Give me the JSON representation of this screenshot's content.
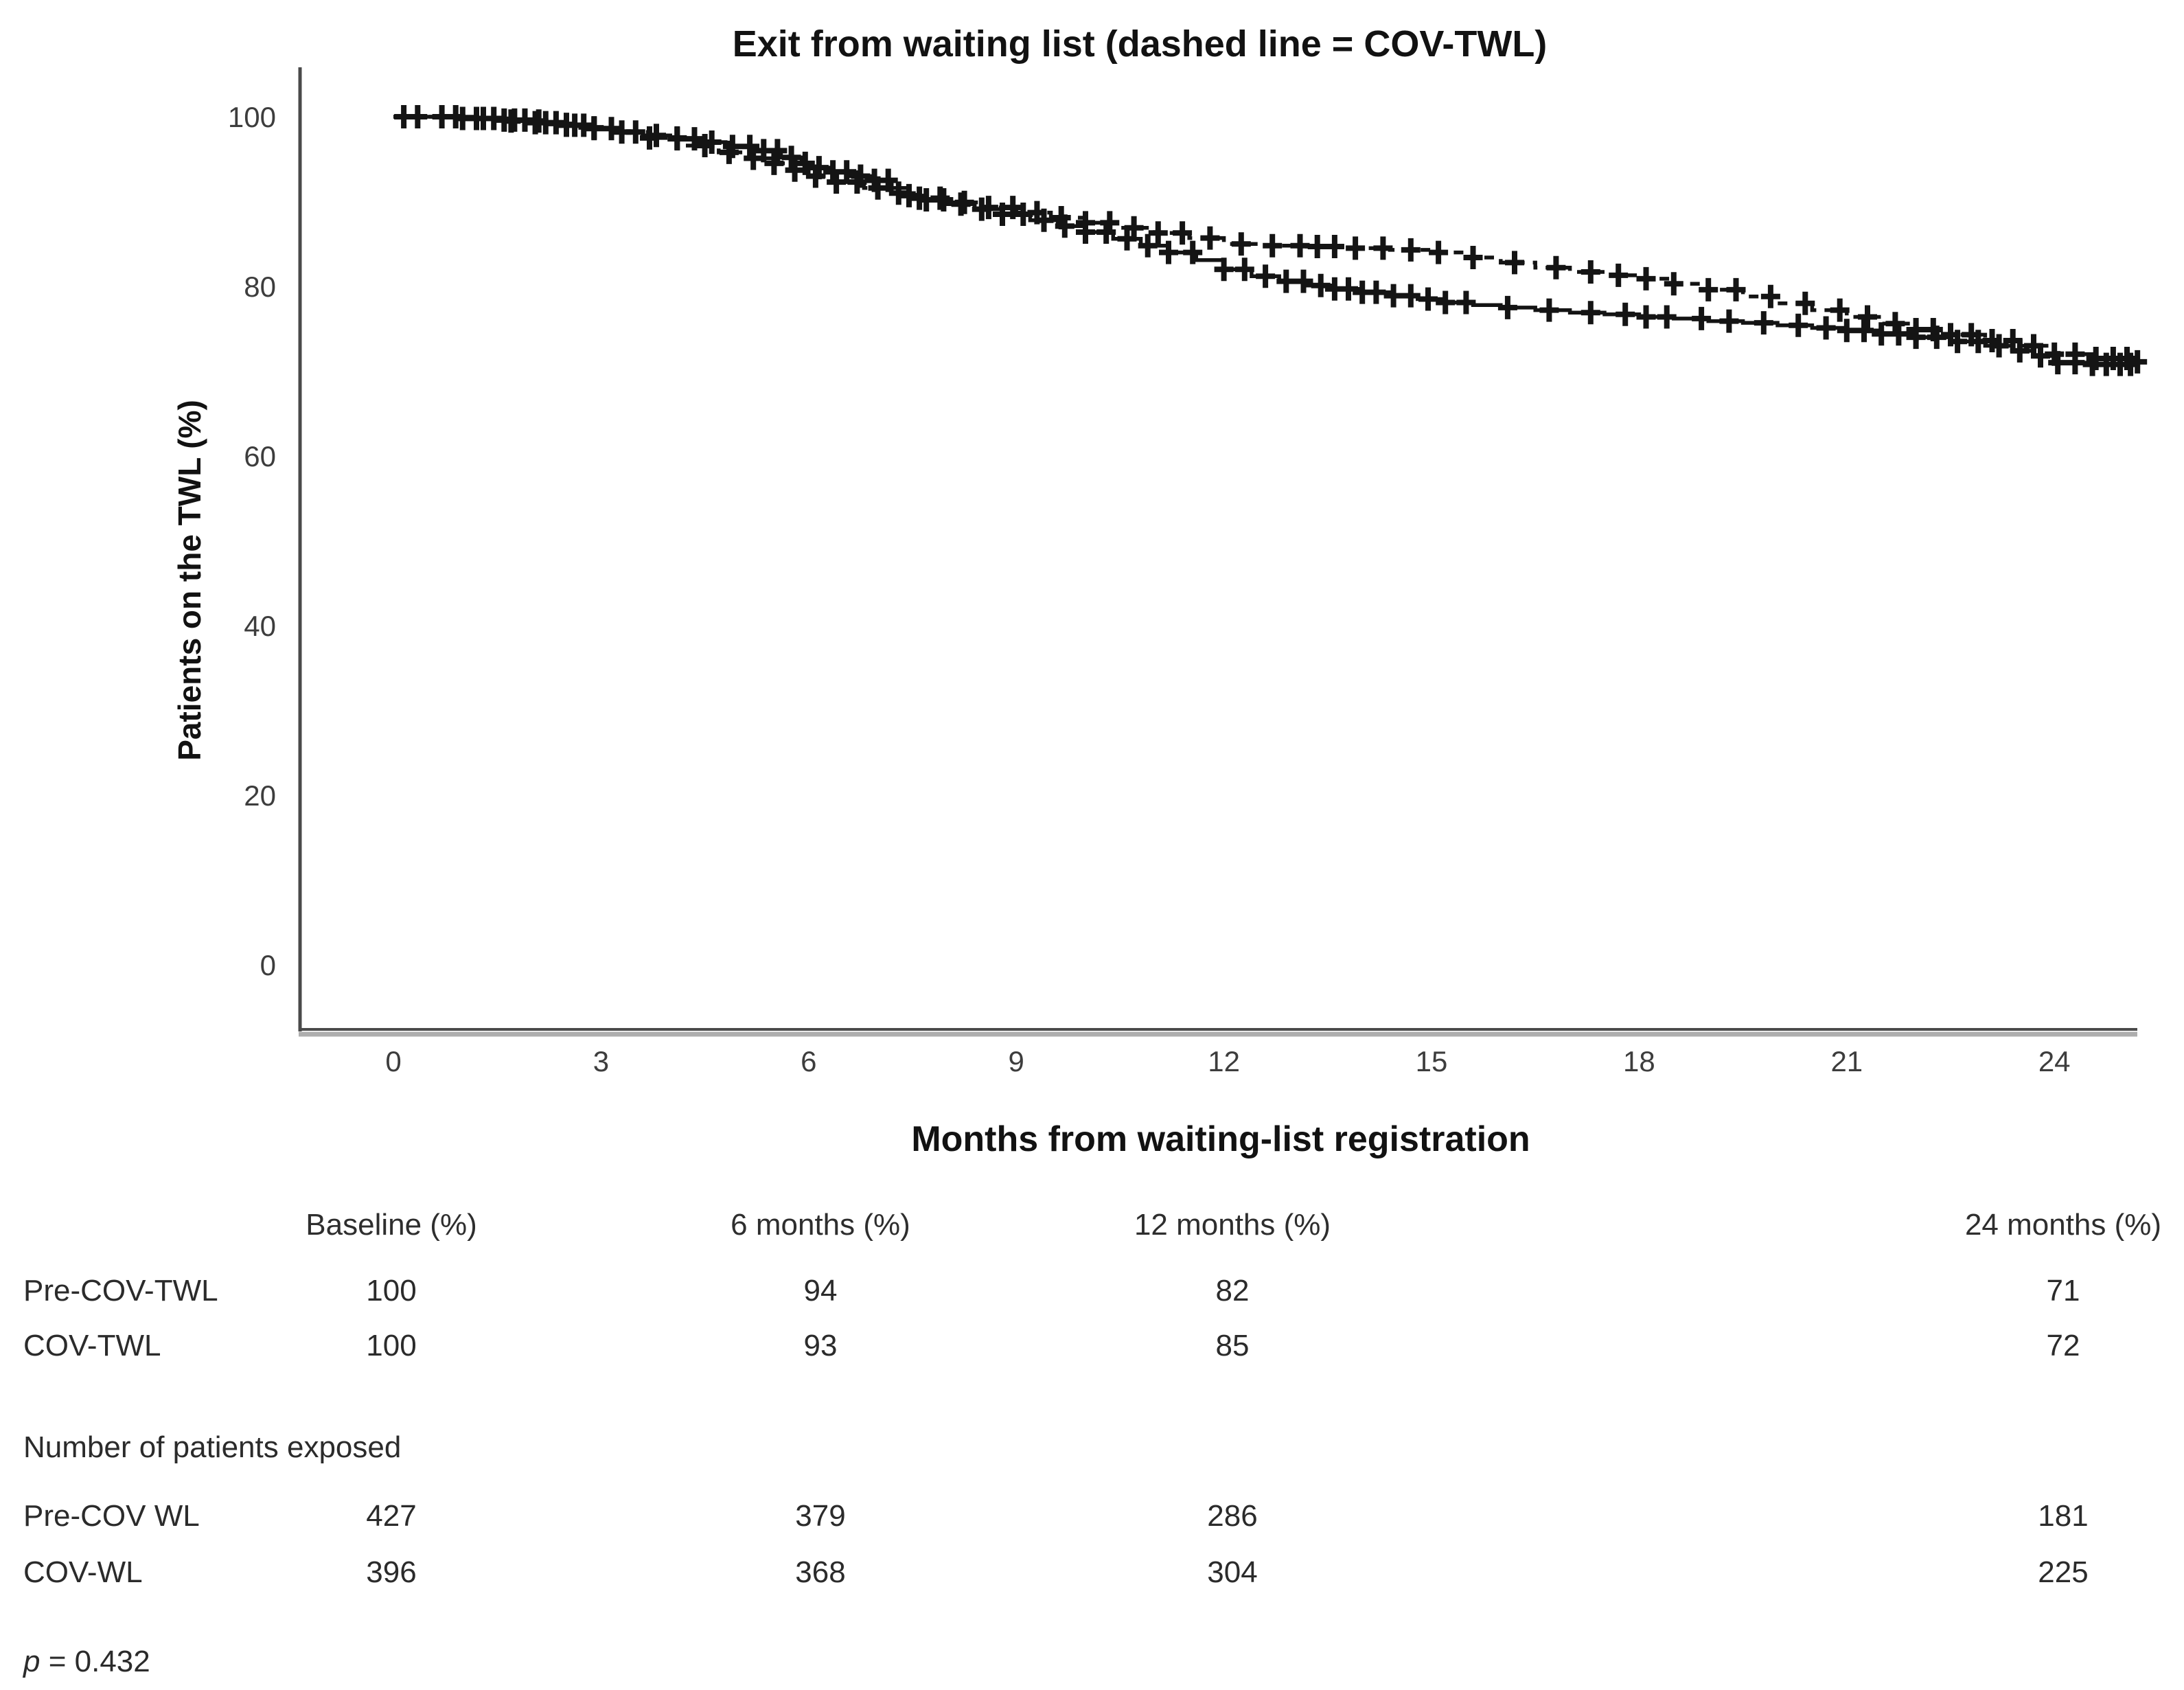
{
  "chart_data": {
    "type": "line",
    "subtype": "kaplan-meier-step-survival",
    "title": "Exit from waiting list (dashed line = COV-TWL)",
    "xlabel": "Months from waiting-list registration",
    "ylabel": "Patients on the TWL (%)",
    "xlim": [
      0,
      25.5
    ],
    "ylim": [
      0,
      105
    ],
    "x_ticks": [
      0,
      3,
      6,
      9,
      12,
      15,
      18,
      21,
      24
    ],
    "y_ticks": [
      0,
      20,
      40,
      60,
      80,
      100
    ],
    "grid": false,
    "legend_position": "none (dashed line identified in title)",
    "marker": "plus (censoring marks)",
    "line_color": "#141414",
    "series": [
      {
        "name": "COV-TWL",
        "style": "dashed",
        "steps": [
          [
            0,
            100
          ],
          [
            1.2,
            99.8
          ],
          [
            1.7,
            99.5
          ],
          [
            2.2,
            99.1
          ],
          [
            2.7,
            98.7
          ],
          [
            3.2,
            98.2
          ],
          [
            3.7,
            97.5
          ],
          [
            4.2,
            96.6
          ],
          [
            4.7,
            95.8
          ],
          [
            5.1,
            95.1
          ],
          [
            5.5,
            94.5
          ],
          [
            5.8,
            93.7
          ],
          [
            6.0,
            93.0
          ],
          [
            6.4,
            92.3
          ],
          [
            6.8,
            91.6
          ],
          [
            7.2,
            91.0
          ],
          [
            7.6,
            90.4
          ],
          [
            8.0,
            89.9
          ],
          [
            8.5,
            89.3
          ],
          [
            9.0,
            88.7
          ],
          [
            9.5,
            88.1
          ],
          [
            10.0,
            87.5
          ],
          [
            10.5,
            86.9
          ],
          [
            11.0,
            86.3
          ],
          [
            11.5,
            85.7
          ],
          [
            12.0,
            85.0
          ],
          [
            12.6,
            84.8
          ],
          [
            13.2,
            84.7
          ],
          [
            13.8,
            84.5
          ],
          [
            14.4,
            84.3
          ],
          [
            15.0,
            84.0
          ],
          [
            15.5,
            83.4
          ],
          [
            16.0,
            82.8
          ],
          [
            16.5,
            82.2
          ],
          [
            17.0,
            81.7
          ],
          [
            17.5,
            81.3
          ],
          [
            18.0,
            80.9
          ],
          [
            18.5,
            80.3
          ],
          [
            19.0,
            79.6
          ],
          [
            19.5,
            78.8
          ],
          [
            20.0,
            78.0
          ],
          [
            20.5,
            77.2
          ],
          [
            21.0,
            76.4
          ],
          [
            21.5,
            75.6
          ],
          [
            22.0,
            74.9
          ],
          [
            22.5,
            74.3
          ],
          [
            23.0,
            73.6
          ],
          [
            23.5,
            73.0
          ],
          [
            24.0,
            72.0
          ],
          [
            24.6,
            71.5
          ],
          [
            25.2,
            71.1
          ]
        ],
        "censor_times": [
          0.35,
          0.9,
          1.3,
          1.7,
          2.1,
          2.5,
          2.9,
          3.3,
          3.7,
          4.1,
          4.5,
          4.85,
          5.2,
          5.5,
          5.8,
          6.1,
          6.4,
          6.7,
          7.0,
          7.3,
          7.6,
          7.9,
          8.25,
          8.6,
          8.95,
          9.3,
          9.65,
          10.0,
          10.35,
          10.7,
          11.05,
          11.4,
          11.8,
          12.25,
          12.7,
          13.1,
          13.35,
          13.6,
          13.9,
          14.3,
          14.7,
          15.1,
          15.6,
          16.2,
          16.8,
          17.3,
          17.7,
          18.1,
          18.5,
          19.0,
          19.4,
          19.9,
          20.4,
          20.9,
          21.3,
          21.7,
          22.0,
          22.25,
          22.5,
          22.8,
          23.1,
          23.4,
          23.7,
          24.0,
          24.3,
          24.6,
          24.85,
          25.05,
          25.2
        ]
      },
      {
        "name": "Pre-COV-TWL",
        "style": "solid",
        "steps": [
          [
            0,
            100
          ],
          [
            1.0,
            99.8
          ],
          [
            1.5,
            99.6
          ],
          [
            2.0,
            99.3
          ],
          [
            2.4,
            99.0
          ],
          [
            2.8,
            98.6
          ],
          [
            3.2,
            98.2
          ],
          [
            3.6,
            97.8
          ],
          [
            4.0,
            97.4
          ],
          [
            4.4,
            97.0
          ],
          [
            4.8,
            96.5
          ],
          [
            5.2,
            96.0
          ],
          [
            5.6,
            95.2
          ],
          [
            5.9,
            94.5
          ],
          [
            6.0,
            94.0
          ],
          [
            6.3,
            93.5
          ],
          [
            6.6,
            93.0
          ],
          [
            6.9,
            92.5
          ],
          [
            7.2,
            91.6
          ],
          [
            7.45,
            90.7
          ],
          [
            7.7,
            90.2
          ],
          [
            8.0,
            89.7
          ],
          [
            8.4,
            89.1
          ],
          [
            8.8,
            88.5
          ],
          [
            9.2,
            87.8
          ],
          [
            9.6,
            87.1
          ],
          [
            10.0,
            86.4
          ],
          [
            10.4,
            85.6
          ],
          [
            10.8,
            84.8
          ],
          [
            11.2,
            84.0
          ],
          [
            11.6,
            83.1
          ],
          [
            12.0,
            82.0
          ],
          [
            12.4,
            81.2
          ],
          [
            12.8,
            80.6
          ],
          [
            13.2,
            80.1
          ],
          [
            13.6,
            79.7
          ],
          [
            14.0,
            79.3
          ],
          [
            14.4,
            78.9
          ],
          [
            14.8,
            78.5
          ],
          [
            15.2,
            78.1
          ],
          [
            15.6,
            77.8
          ],
          [
            16.0,
            77.5
          ],
          [
            16.5,
            77.2
          ],
          [
            17.0,
            76.9
          ],
          [
            17.5,
            76.7
          ],
          [
            18.0,
            76.4
          ],
          [
            18.5,
            76.2
          ],
          [
            19.0,
            75.9
          ],
          [
            19.5,
            75.7
          ],
          [
            20.0,
            75.4
          ],
          [
            20.5,
            75.1
          ],
          [
            21.0,
            74.8
          ],
          [
            21.5,
            74.4
          ],
          [
            22.0,
            74.0
          ],
          [
            22.5,
            73.5
          ],
          [
            23.0,
            73.0
          ],
          [
            23.4,
            72.4
          ],
          [
            23.7,
            71.8
          ],
          [
            24.0,
            71.0
          ],
          [
            24.5,
            70.8
          ],
          [
            25.2,
            70.6
          ]
        ],
        "censor_times": [
          0.15,
          0.7,
          1.0,
          1.2,
          1.45,
          1.6,
          1.75,
          1.9,
          2.05,
          2.2,
          2.35,
          2.5,
          2.62,
          2.75,
          2.9,
          3.15,
          3.5,
          3.8,
          4.1,
          4.35,
          4.6,
          4.9,
          5.15,
          5.35,
          5.55,
          5.75,
          5.95,
          6.15,
          6.35,
          6.55,
          6.75,
          6.95,
          7.15,
          7.45,
          7.7,
          7.95,
          8.2,
          8.5,
          8.8,
          9.1,
          9.4,
          9.7,
          10.0,
          10.3,
          10.6,
          10.9,
          11.2,
          11.55,
          12.0,
          12.3,
          12.6,
          12.9,
          13.15,
          13.4,
          13.6,
          13.8,
          14.0,
          14.2,
          14.45,
          14.7,
          14.95,
          15.2,
          15.5,
          16.1,
          16.7,
          17.3,
          17.8,
          18.1,
          18.4,
          18.9,
          19.3,
          19.8,
          20.3,
          20.7,
          21.0,
          21.25,
          21.5,
          21.75,
          22.0,
          22.3,
          22.6,
          22.9,
          23.2,
          23.5,
          23.8,
          24.05,
          24.3,
          24.55,
          24.75,
          24.95,
          25.1
        ]
      }
    ]
  },
  "summary_table": {
    "columns": [
      "Baseline (%)",
      "6 months (%)",
      "12 months (%)",
      "24 months (%)"
    ],
    "percent_rows": [
      {
        "label": "Pre-COV-TWL",
        "values": [
          "100",
          "94",
          "82",
          "71"
        ]
      },
      {
        "label": "COV-TWL",
        "values": [
          "100",
          "93",
          "85",
          "72"
        ]
      }
    ],
    "exposed_label": "Number of patients exposed",
    "exposed_rows": [
      {
        "label": "Pre-COV WL",
        "values": [
          "427",
          "379",
          "286",
          "181"
        ]
      },
      {
        "label": "COV-WL",
        "values": [
          "396",
          "368",
          "304",
          "225"
        ]
      }
    ],
    "p_label": "p",
    "p_rest": " = 0.432"
  }
}
